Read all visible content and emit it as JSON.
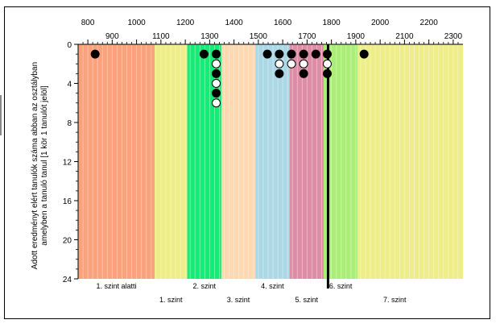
{
  "chart_data": {
    "type": "scatter",
    "title": "",
    "xlabel": "",
    "ylabel_lines": [
      "Adott eredményt elért tanulók száma abban az osztályban",
      "amelyben a tanuló tanul [1 kör 1 tanulót jelöl]"
    ],
    "xlim": [
      760,
      2340
    ],
    "ylim": [
      0,
      24
    ],
    "y_ticks": [
      0,
      4,
      8,
      12,
      16,
      20,
      24
    ],
    "x_ticks_top_row": [
      800,
      1000,
      1200,
      1400,
      1600,
      1800,
      2000,
      2200
    ],
    "x_ticks_bottom_row": [
      900,
      1100,
      1300,
      1500,
      1700,
      1900,
      2100,
      2300
    ],
    "grid": "vertical lines every 20 points",
    "bands": [
      {
        "name": "1. szint alatti",
        "x0": 760,
        "x1": 1074,
        "color": "#f9a27c",
        "label_row": 1
      },
      {
        "name": "1. szint",
        "x0": 1074,
        "x1": 1208,
        "color": "#eeee88",
        "label_row": 2
      },
      {
        "name": "2. szint",
        "x0": 1208,
        "x1": 1348,
        "color": "#11ee77",
        "label_row": 1
      },
      {
        "name": "3. szint",
        "x0": 1348,
        "x1": 1488,
        "color": "#fdd8b0",
        "label_row": 2
      },
      {
        "name": "4. szint",
        "x0": 1488,
        "x1": 1628,
        "color": "#acd8e6",
        "label_row": 1
      },
      {
        "name": "5. szint",
        "x0": 1628,
        "x1": 1768,
        "color": "#dd8ea6",
        "label_row": 2
      },
      {
        "name": "6. szint",
        "x0": 1768,
        "x1": 1908,
        "color": "#aaee77",
        "label_row": 1
      },
      {
        "name": "7. szint",
        "x0": 1908,
        "x1": 2340,
        "color": "#eeee88",
        "label_row": 2
      }
    ],
    "reference_line_x": 1786,
    "points": [
      {
        "x": 830,
        "y": 1,
        "fill": "black"
      },
      {
        "x": 1277,
        "y": 1,
        "fill": "black"
      },
      {
        "x": 1327,
        "y": 1,
        "fill": "black"
      },
      {
        "x": 1327,
        "y": 2,
        "fill": "white"
      },
      {
        "x": 1327,
        "y": 3,
        "fill": "black"
      },
      {
        "x": 1327,
        "y": 4,
        "fill": "white"
      },
      {
        "x": 1327,
        "y": 5,
        "fill": "black"
      },
      {
        "x": 1327,
        "y": 6,
        "fill": "white"
      },
      {
        "x": 1537,
        "y": 1,
        "fill": "black"
      },
      {
        "x": 1586,
        "y": 1,
        "fill": "black"
      },
      {
        "x": 1586,
        "y": 2,
        "fill": "white"
      },
      {
        "x": 1586,
        "y": 3,
        "fill": "black"
      },
      {
        "x": 1636,
        "y": 1,
        "fill": "black"
      },
      {
        "x": 1636,
        "y": 2,
        "fill": "white"
      },
      {
        "x": 1686,
        "y": 1,
        "fill": "black"
      },
      {
        "x": 1686,
        "y": 2,
        "fill": "white"
      },
      {
        "x": 1686,
        "y": 3,
        "fill": "black"
      },
      {
        "x": 1736,
        "y": 1,
        "fill": "black"
      },
      {
        "x": 1783,
        "y": 1,
        "fill": "black"
      },
      {
        "x": 1783,
        "y": 2,
        "fill": "white"
      },
      {
        "x": 1783,
        "y": 3,
        "fill": "black"
      },
      {
        "x": 1934,
        "y": 1,
        "fill": "black"
      }
    ]
  }
}
